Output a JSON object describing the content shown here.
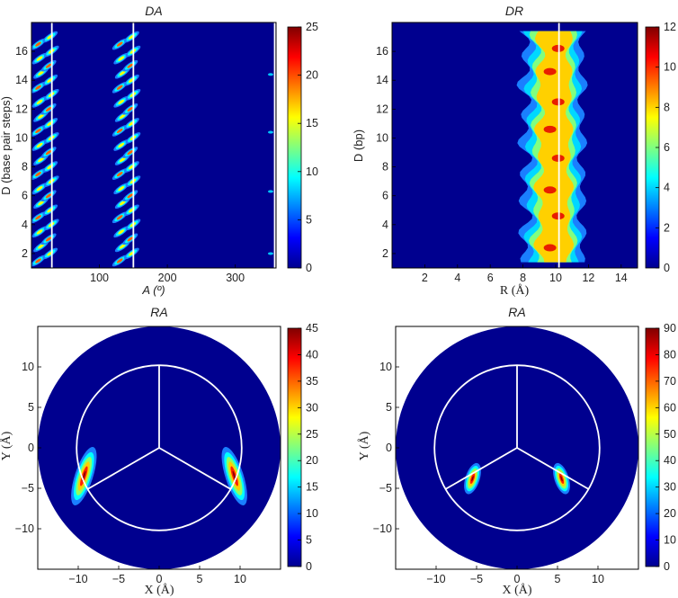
{
  "chart_data": [
    {
      "id": "da",
      "type": "heatmap",
      "title": "DA",
      "xlabel": "A (º)",
      "ylabel": "D (base pair steps)",
      "xlim": [
        0,
        360
      ],
      "ylim": [
        1,
        18
      ],
      "x_ticks": [
        100,
        200,
        300
      ],
      "y_ticks": [
        2,
        4,
        6,
        8,
        10,
        12,
        14,
        16
      ],
      "colorbar": {
        "min": 0,
        "max": 25,
        "ticks": [
          0,
          5,
          10,
          15,
          20,
          25
        ]
      },
      "white_lines_x": [
        30,
        150,
        358
      ],
      "bands": [
        {
          "start": 10,
          "step_per_D": 2.2,
          "D_range": [
            1.5,
            17
          ]
        },
        {
          "start": 130,
          "step_per_D": 2.2,
          "D_range": [
            1.5,
            17
          ]
        }
      ]
    },
    {
      "id": "dr",
      "type": "heatmap",
      "title": "DR",
      "xlabel": "R (Å)",
      "ylabel": "D (bp)",
      "xlim": [
        0,
        15
      ],
      "ylim": [
        1,
        18
      ],
      "x_ticks": [
        2,
        4,
        6,
        8,
        10,
        12,
        14
      ],
      "y_ticks": [
        2,
        4,
        6,
        8,
        10,
        12,
        14,
        16
      ],
      "colorbar": {
        "min": 0,
        "max": 12,
        "ticks": [
          0,
          2,
          4,
          6,
          8,
          10,
          12
        ]
      },
      "white_line_x": 10.2,
      "peak_R": 10.0
    },
    {
      "id": "ra1",
      "type": "heatmap",
      "title": "RA",
      "xlabel": "X (Å)",
      "ylabel": "Y (Å)",
      "xlim": [
        -15,
        15
      ],
      "ylim": [
        -15,
        15
      ],
      "x_ticks": [
        -10,
        -5,
        0,
        5,
        10
      ],
      "y_ticks": [
        -10,
        -5,
        0,
        5,
        10
      ],
      "colorbar": {
        "min": 0,
        "max": 45,
        "ticks": [
          0,
          5,
          10,
          15,
          20,
          25,
          30,
          35,
          40,
          45
        ]
      },
      "inner_circle_radius": 10.2,
      "hotspots": [
        {
          "x": -9.3,
          "y": -3.5
        },
        {
          "x": 9.3,
          "y": -3.5
        }
      ]
    },
    {
      "id": "ra2",
      "type": "heatmap",
      "title": "RA",
      "xlabel": "X (Å)",
      "ylabel": "Y (Å)",
      "xlim": [
        -15,
        15
      ],
      "ylim": [
        -15,
        15
      ],
      "x_ticks": [
        -10,
        -5,
        0,
        5,
        10
      ],
      "y_ticks": [
        -10,
        -5,
        0,
        5,
        10
      ],
      "colorbar": {
        "min": 0,
        "max": 90,
        "ticks": [
          0,
          10,
          20,
          30,
          40,
          50,
          60,
          70,
          80,
          90
        ]
      },
      "inner_circle_radius": 10.2,
      "hotspots": [
        {
          "x": -5.5,
          "y": -3.8
        },
        {
          "x": 5.5,
          "y": -3.8
        }
      ]
    }
  ]
}
